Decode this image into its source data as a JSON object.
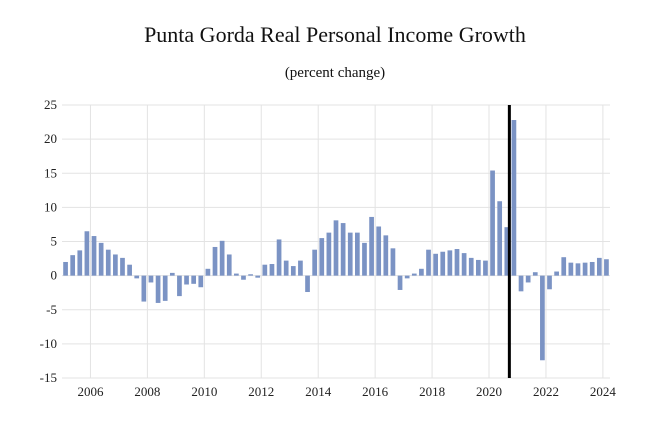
{
  "chart_data": {
    "type": "bar",
    "title": "Punta Gorda Real Personal Income Growth",
    "subtitle": "(percent change)",
    "xlabel": "",
    "ylabel": "",
    "ylim": [
      -15,
      25
    ],
    "yticks": [
      25,
      20,
      15,
      10,
      5,
      0,
      -5,
      -10,
      -15
    ],
    "xticks": [
      "2006",
      "2008",
      "2010",
      "2012",
      "2014",
      "2016",
      "2018",
      "2020",
      "2022",
      "2024"
    ],
    "grid": true,
    "bar_color": "#7b93c4",
    "marker_color": "#000000",
    "marker_x": "2020 Q4",
    "start": "2005 Q1",
    "frequency": "quarterly",
    "values": [
      2.0,
      3.0,
      3.7,
      6.5,
      5.8,
      4.8,
      3.8,
      3.1,
      2.6,
      1.6,
      -0.4,
      -3.8,
      -1.0,
      -4.0,
      -3.7,
      0.4,
      -3.0,
      -1.3,
      -1.2,
      -1.7,
      1.0,
      4.2,
      5.1,
      3.1,
      0.3,
      -0.6,
      0.2,
      -0.3,
      1.6,
      1.7,
      5.3,
      2.2,
      1.4,
      2.2,
      -2.4,
      3.8,
      5.5,
      6.3,
      8.1,
      7.7,
      6.3,
      6.3,
      4.8,
      8.6,
      7.2,
      5.9,
      4.0,
      -2.1,
      -0.4,
      0.3,
      1.0,
      3.8,
      3.2,
      3.5,
      3.7,
      3.9,
      3.3,
      2.6,
      2.3,
      2.2,
      15.4,
      10.9,
      7.1,
      22.8,
      -2.3,
      -1.0,
      0.5,
      -12.4,
      -2.0,
      0.6,
      2.7,
      1.9,
      1.8,
      1.9,
      2.0,
      2.6,
      2.4
    ]
  }
}
